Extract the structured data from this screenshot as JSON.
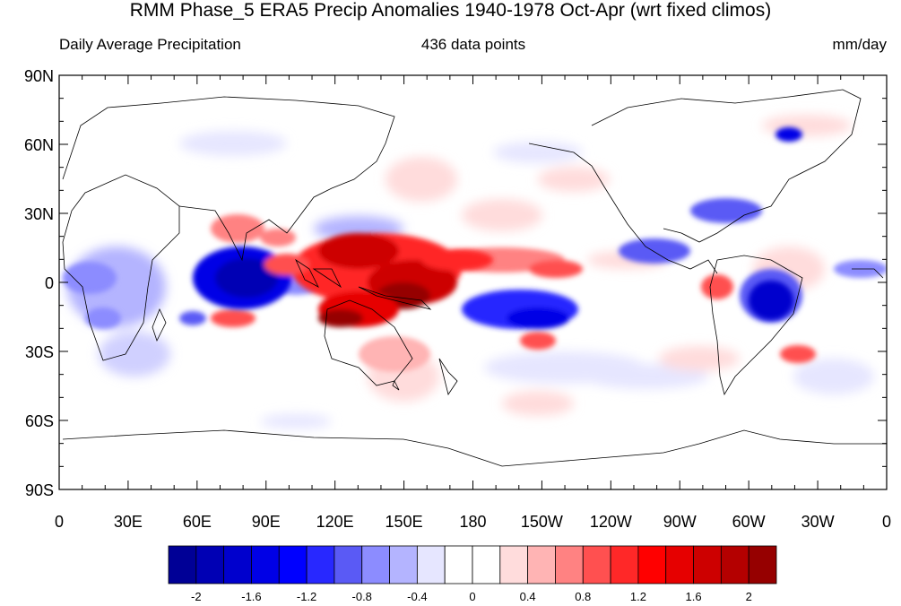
{
  "title": "RMM Phase_5 ERA5 Precip Anomalies 1940-1978 Oct-Apr (wrt fixed climos)",
  "left_subtitle": "Daily Average Precipitation",
  "center_subtitle": "436 data points",
  "right_subtitle": "mm/day",
  "map": {
    "projection": "cylindrical equidistant, centered 180",
    "lon_ticks": [
      "0",
      "30E",
      "60E",
      "90E",
      "120E",
      "150E",
      "180",
      "150W",
      "120W",
      "90W",
      "60W",
      "30W",
      "0"
    ],
    "lat_ticks": [
      "90N",
      "60N",
      "30N",
      "0",
      "30S",
      "60S",
      "90S"
    ]
  },
  "colorbar": {
    "labels": [
      "-2",
      "-1.6",
      "-1.2",
      "-0.8",
      "-0.4",
      "0",
      "0.4",
      "0.8",
      "1.2",
      "1.6",
      "2"
    ],
    "colors": [
      "#000096",
      "#0000b4",
      "#0000cd",
      "#0000e6",
      "#0000ff",
      "#2828ff",
      "#5a5af5",
      "#8c8cff",
      "#b4b4ff",
      "#e6e6ff",
      "#ffffff",
      "#ffffff",
      "#ffdcdc",
      "#ffb4b4",
      "#ff8282",
      "#ff5050",
      "#ff2828",
      "#ff0000",
      "#e60000",
      "#cd0000",
      "#b40000",
      "#960000"
    ]
  }
}
